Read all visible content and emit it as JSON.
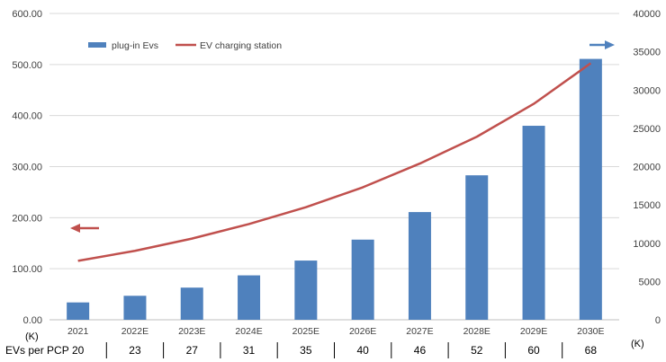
{
  "chart_data": {
    "type": "bar+line",
    "categories": [
      "2021",
      "2022E",
      "2023E",
      "2024E",
      "2025E",
      "2026E",
      "2027E",
      "2028E",
      "2029E",
      "2030E"
    ],
    "series": [
      {
        "name": "plug-in Evs",
        "type": "bar",
        "axis": "left",
        "color": "#4F81BD",
        "values": [
          34,
          47,
          63,
          87,
          116,
          157,
          211,
          283,
          380,
          511
        ]
      },
      {
        "name": "EV charging station",
        "type": "line",
        "axis": "right",
        "color": "#C0504D",
        "values": [
          7700,
          9000,
          10600,
          12500,
          14700,
          17300,
          20400,
          23900,
          28200,
          33500
        ]
      }
    ],
    "left_axis": {
      "range": [
        0,
        600
      ],
      "ticks": [
        "0.00",
        "100.00",
        "200.00",
        "300.00",
        "400.00",
        "500.00",
        "600.00"
      ],
      "unit": "(K)"
    },
    "right_axis": {
      "range": [
        0,
        40000
      ],
      "ticks": [
        "0",
        "5000",
        "10000",
        "15000",
        "20000",
        "25000",
        "30000",
        "35000",
        "40000"
      ],
      "unit": "(K)"
    },
    "grid": true,
    "legend": "top-left",
    "left_arrow_color": "#C0504D",
    "right_arrow_color": "#4F81BD",
    "pcp_row": {
      "label": "EVs per PCP",
      "values": [
        "20",
        "23",
        "27",
        "31",
        "35",
        "40",
        "46",
        "52",
        "60",
        "68"
      ]
    }
  }
}
